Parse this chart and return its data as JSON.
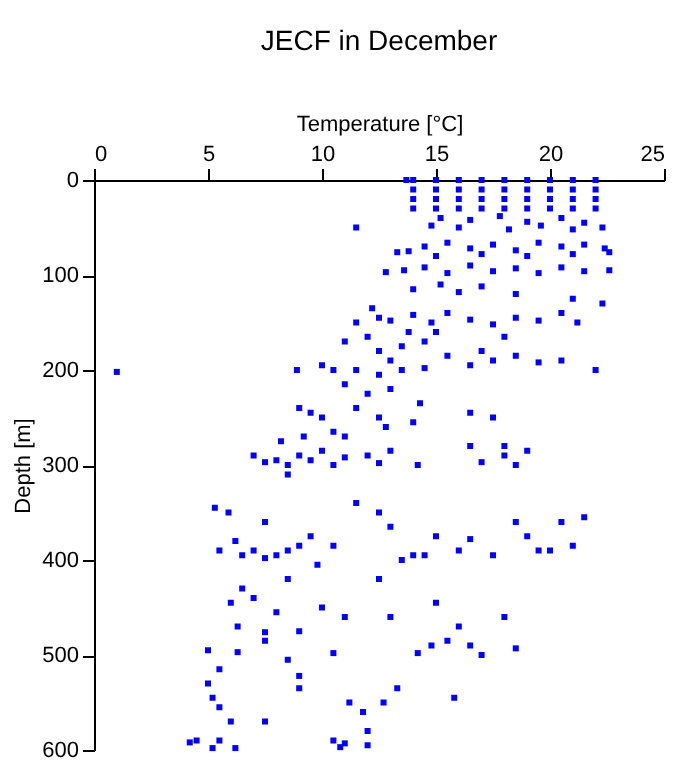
{
  "chart_data": {
    "type": "scatter",
    "title": "JECF in December",
    "xlabel": "Temperature [°C]",
    "ylabel": "Depth [m]",
    "xlim": [
      0,
      25
    ],
    "xticks": [
      0,
      5,
      10,
      15,
      20,
      25
    ],
    "ylim": [
      600,
      0
    ],
    "yticks": [
      0,
      100,
      200,
      300,
      400,
      500,
      600
    ],
    "marker": "square",
    "grid": false,
    "series": [
      {
        "color": "#0000ff",
        "x": [
          13.7,
          14,
          15,
          16,
          17,
          18,
          19,
          20,
          21,
          22,
          14,
          15,
          16,
          17,
          18,
          19,
          20,
          21,
          22,
          14,
          15,
          16,
          17,
          18,
          19,
          20,
          21,
          22,
          14,
          15,
          16,
          17,
          18,
          19,
          20,
          21,
          22,
          15.2,
          16.5,
          17.8,
          19,
          20.5,
          21.5,
          14.8,
          16,
          18.2,
          19.6,
          21,
          22.3,
          11.5,
          13.8,
          14.5,
          15.5,
          16.5,
          17.5,
          18.5,
          19.5,
          20.5,
          21.5,
          22.4,
          15,
          17,
          19,
          21,
          22.6,
          12.8,
          13.6,
          14.5,
          15.5,
          16.5,
          17.5,
          18.5,
          19.5,
          20.5,
          21.5,
          22.6,
          13.3,
          14,
          16,
          17,
          18.5,
          21,
          22.3,
          15.2,
          11.5,
          12.5,
          13,
          14,
          14.8,
          15.5,
          16.5,
          17.5,
          18.5,
          19.5,
          20.5,
          21.2,
          12.2,
          13.8,
          11,
          12,
          12.5,
          13,
          13.5,
          14.5,
          15,
          15.5,
          16.5,
          17.5,
          18.5,
          19.5,
          20.5,
          10,
          10.5,
          11.5,
          12.5,
          13.5,
          14.5,
          8.9,
          1,
          22,
          18,
          17,
          11,
          12,
          13,
          11.5,
          12.5,
          10,
          10.5,
          9.5,
          11,
          12.8,
          14.3,
          14,
          16.5,
          17.5,
          18,
          9,
          7,
          7.5,
          8,
          8.5,
          9,
          9.5,
          10,
          10.5,
          11,
          12,
          12.5,
          13,
          8.2,
          9.2,
          14.2,
          17,
          18,
          18.5,
          19,
          16.5,
          8.5,
          5.3,
          5.9,
          6.5,
          7,
          7.5,
          8,
          8.5,
          9,
          5.5,
          6.2,
          7.5,
          9.5,
          10.5,
          11.5,
          12.5,
          13,
          14.5,
          15,
          16,
          16.5,
          17.5,
          18.5,
          19,
          19.5,
          20,
          20.5,
          21,
          21.5,
          13.5,
          9.8,
          6,
          6.3,
          6.5,
          7,
          7.5,
          8,
          8.5,
          9,
          10,
          11,
          12.5,
          13,
          14,
          15,
          15.5,
          16,
          16.5,
          17,
          18,
          18.5,
          5,
          6.3,
          7.5,
          8.5,
          10.5,
          9,
          5.5,
          14.2,
          14.8,
          5,
          5.2,
          5.5,
          6,
          7.5,
          9,
          10.5,
          11.2,
          11.8,
          12,
          12.7,
          13.3,
          15.8,
          4.5,
          4.2,
          5.5,
          5.2,
          6.2,
          12,
          11,
          10.8
        ],
        "values": [
          0,
          0,
          0,
          0,
          0,
          0,
          0,
          0,
          0,
          0,
          10,
          10,
          10,
          10,
          10,
          10,
          10,
          10,
          10,
          20,
          20,
          20,
          20,
          20,
          20,
          20,
          20,
          20,
          30,
          30,
          30,
          30,
          30,
          30,
          30,
          30,
          30,
          40,
          42,
          38,
          44,
          40,
          45,
          48,
          50,
          52,
          48,
          52,
          50,
          50,
          75,
          70,
          66,
          72,
          68,
          74,
          66,
          70,
          68,
          72,
          80,
          78,
          80,
          78,
          76,
          97,
          95,
          92,
          98,
          90,
          96,
          93,
          98,
          92,
          96,
          95,
          76,
          115,
          118,
          112,
          120,
          125,
          130,
          110,
          150,
          145,
          148,
          142,
          150,
          140,
          147,
          152,
          145,
          148,
          140,
          150,
          135,
          160,
          170,
          165,
          180,
          190,
          175,
          170,
          160,
          185,
          195,
          190,
          185,
          192,
          190,
          195,
          200,
          200,
          205,
          200,
          198,
          200,
          202,
          200,
          165,
          180,
          215,
          225,
          220,
          240,
          250,
          250,
          265,
          245,
          270,
          260,
          235,
          255,
          245,
          250,
          280,
          240,
          290,
          297,
          295,
          300,
          290,
          295,
          285,
          300,
          292,
          290,
          298,
          285,
          275,
          270,
          300,
          297,
          290,
          300,
          285,
          280,
          310,
          345,
          350,
          395,
          390,
          398,
          395,
          390,
          385,
          390,
          380,
          360,
          375,
          385,
          340,
          350,
          365,
          395,
          375,
          390,
          378,
          395,
          360,
          375,
          390,
          390,
          360,
          385,
          355,
          400,
          405,
          445,
          470,
          430,
          440,
          485,
          455,
          420,
          475,
          450,
          460,
          420,
          460,
          395,
          445,
          485,
          470,
          490,
          500,
          460,
          493,
          495,
          497,
          476,
          505,
          498,
          522,
          515,
          498,
          490,
          530,
          545,
          555,
          570,
          570,
          535,
          590,
          550,
          560,
          580,
          550,
          535,
          545,
          590,
          592,
          590,
          598,
          598,
          595,
          593,
          597
        ]
      }
    ]
  }
}
